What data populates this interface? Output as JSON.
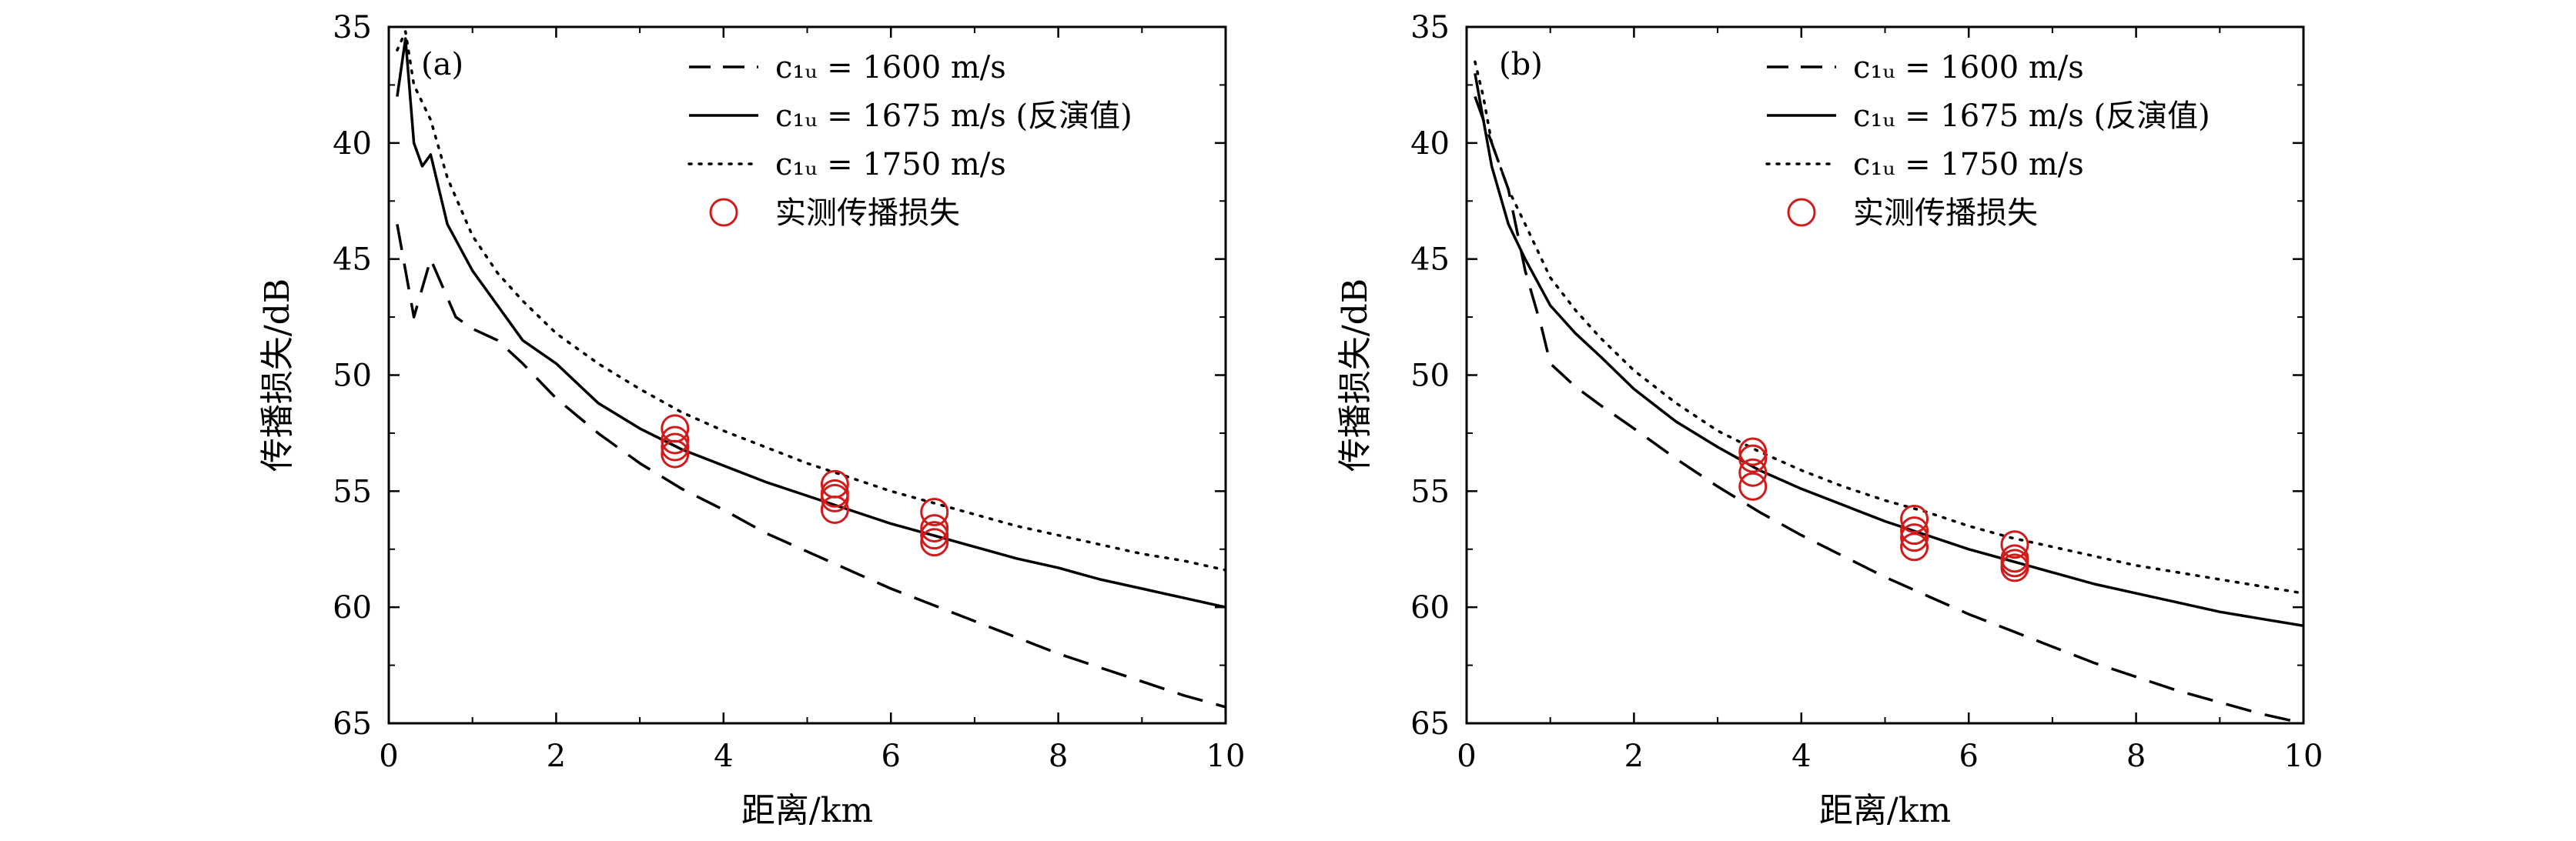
{
  "colors": {
    "curves": "#000000",
    "measured": "#d11a1a",
    "axis": "#000000"
  },
  "chart_data": [
    {
      "type": "line",
      "panel_label": "(a)",
      "xlabel": "距离/km",
      "ylabel": "传播损失/dB",
      "xlim": [
        0,
        10
      ],
      "ylim": [
        35,
        65
      ],
      "y_inverted": true,
      "xticks": [
        "0",
        "2",
        "4",
        "6",
        "8",
        "10"
      ],
      "yticks": [
        "35",
        "40",
        "45",
        "50",
        "55",
        "60",
        "65"
      ],
      "legend_position": "top-right",
      "legend": [
        {
          "label": "c₁ᵤ = 1600 m/s",
          "style": "dashed"
        },
        {
          "label": "c₁ᵤ = 1675 m/s (反演值)",
          "style": "solid"
        },
        {
          "label": "c₁ᵤ = 1750 m/s",
          "style": "dotted"
        },
        {
          "label": "实测传播损失",
          "style": "marker"
        }
      ],
      "series": [
        {
          "name": "c₁ᵤ = 1600 m/s",
          "style": "dashed",
          "x": [
            0.1,
            0.3,
            0.5,
            0.8,
            1.0,
            1.3,
            1.6,
            2.0,
            2.5,
            3.0,
            3.5,
            4.0,
            4.5,
            5.0,
            5.5,
            6.0,
            6.5,
            7.0,
            7.5,
            8.0,
            8.5,
            9.0,
            9.5,
            10.0
          ],
          "y": [
            43.5,
            47.5,
            45,
            47.5,
            48,
            48.5,
            49.5,
            51,
            52.5,
            53.8,
            54.9,
            55.8,
            56.8,
            57.6,
            58.4,
            59.2,
            59.9,
            60.6,
            61.3,
            62.0,
            62.6,
            63.2,
            63.8,
            64.3
          ]
        },
        {
          "name": "c₁ᵤ = 1675 m/s (反演值)",
          "style": "solid",
          "x": [
            0.1,
            0.2,
            0.3,
            0.4,
            0.5,
            0.7,
            1.0,
            1.3,
            1.6,
            2.0,
            2.5,
            3.0,
            3.5,
            4.0,
            4.5,
            5.0,
            5.5,
            6.0,
            6.5,
            7.0,
            7.5,
            8.0,
            8.5,
            9.0,
            9.5,
            10.0
          ],
          "y": [
            38,
            35.5,
            40,
            41,
            40.5,
            43.5,
            45.5,
            47,
            48.5,
            49.5,
            51.2,
            52.3,
            53.2,
            53.9,
            54.6,
            55.2,
            55.8,
            56.4,
            56.9,
            57.4,
            57.9,
            58.3,
            58.8,
            59.2,
            59.6,
            60.0
          ]
        },
        {
          "name": "c₁ᵤ = 1750 m/s",
          "style": "dotted",
          "x": [
            0.1,
            0.2,
            0.3,
            0.5,
            0.7,
            1.0,
            1.3,
            1.6,
            2.0,
            2.5,
            3.0,
            3.5,
            4.0,
            4.5,
            5.0,
            5.5,
            6.0,
            6.5,
            7.0,
            7.5,
            8.0,
            8.5,
            9.0,
            9.5,
            10.0
          ],
          "y": [
            36,
            35.2,
            37.5,
            39,
            41.5,
            44,
            45.6,
            46.8,
            48.2,
            49.5,
            50.6,
            51.6,
            52.4,
            53.1,
            53.8,
            54.4,
            55.0,
            55.5,
            56.0,
            56.5,
            56.9,
            57.3,
            57.7,
            58.0,
            58.4
          ]
        },
        {
          "name": "实测传播损失",
          "style": "marker",
          "x": [
            3.42,
            3.42,
            3.42,
            3.42,
            5.33,
            5.33,
            5.33,
            5.33,
            6.52,
            6.52,
            6.52,
            6.52
          ],
          "y": [
            52.3,
            52.8,
            53.1,
            53.4,
            54.7,
            55.1,
            55.3,
            55.8,
            55.9,
            56.6,
            56.9,
            57.2
          ]
        }
      ]
    },
    {
      "type": "line",
      "panel_label": "(b)",
      "xlabel": "距离/km",
      "ylabel": "传播损失/dB",
      "xlim": [
        0,
        10
      ],
      "ylim": [
        35,
        65
      ],
      "y_inverted": true,
      "xticks": [
        "0",
        "2",
        "4",
        "6",
        "8",
        "10"
      ],
      "yticks": [
        "35",
        "40",
        "45",
        "50",
        "55",
        "60",
        "65"
      ],
      "legend_position": "top-right",
      "legend": [
        {
          "label": "c₁ᵤ = 1600 m/s",
          "style": "dashed"
        },
        {
          "label": "c₁ᵤ = 1675 m/s (反演值)",
          "style": "solid"
        },
        {
          "label": "c₁ᵤ = 1750 m/s",
          "style": "dotted"
        },
        {
          "label": "实测传播损失",
          "style": "marker"
        }
      ],
      "series": [
        {
          "name": "c₁ᵤ = 1600 m/s",
          "style": "dashed",
          "x": [
            0.1,
            0.3,
            0.5,
            0.7,
            0.9,
            1.0,
            1.3,
            1.6,
            2.0,
            2.5,
            3.0,
            3.5,
            4.0,
            4.5,
            5.0,
            5.5,
            6.0,
            6.5,
            7.0,
            7.5,
            8.0,
            8.5,
            9.0,
            9.5,
            10.0
          ],
          "y": [
            38,
            40,
            42,
            45.5,
            48,
            49.5,
            50.5,
            51.3,
            52.3,
            53.6,
            54.8,
            55.9,
            56.9,
            57.8,
            58.7,
            59.5,
            60.3,
            61.0,
            61.7,
            62.4,
            63.0,
            63.6,
            64.1,
            64.6,
            65.0
          ]
        },
        {
          "name": "c₁ᵤ = 1675 m/s (反演值)",
          "style": "solid",
          "x": [
            0.1,
            0.2,
            0.3,
            0.5,
            0.7,
            1.0,
            1.3,
            1.6,
            2.0,
            2.5,
            3.0,
            3.5,
            4.0,
            4.5,
            5.0,
            5.5,
            6.0,
            6.5,
            7.0,
            7.5,
            8.0,
            8.5,
            9.0,
            9.5,
            10.0
          ],
          "y": [
            37,
            39,
            41,
            43.5,
            45,
            47,
            48.2,
            49.2,
            50.6,
            52.0,
            53.1,
            54.1,
            54.9,
            55.6,
            56.3,
            56.9,
            57.5,
            58.0,
            58.5,
            59.0,
            59.4,
            59.8,
            60.2,
            60.5,
            60.8
          ]
        },
        {
          "name": "c₁ᵤ = 1750 m/s",
          "style": "dotted",
          "x": [
            0.1,
            0.2,
            0.3,
            0.5,
            0.7,
            1.0,
            1.3,
            1.6,
            2.0,
            2.5,
            3.0,
            3.5,
            4.0,
            4.5,
            5.0,
            5.5,
            6.0,
            6.5,
            7.0,
            7.5,
            8.0,
            8.5,
            9.0,
            9.5,
            10.0
          ],
          "y": [
            36.5,
            38,
            40,
            42,
            43.5,
            45.8,
            47.2,
            48.4,
            49.8,
            51.2,
            52.4,
            53.3,
            54.1,
            54.8,
            55.4,
            55.9,
            56.5,
            57.0,
            57.4,
            57.8,
            58.2,
            58.5,
            58.8,
            59.1,
            59.4
          ]
        },
        {
          "name": "实测传播损失",
          "style": "marker",
          "x": [
            3.42,
            3.42,
            3.42,
            3.42,
            5.35,
            5.35,
            5.35,
            5.35,
            6.55,
            6.55,
            6.55,
            6.55
          ],
          "y": [
            53.3,
            53.6,
            54.2,
            54.8,
            56.2,
            56.7,
            57.0,
            57.4,
            57.3,
            57.9,
            58.1,
            58.3
          ]
        }
      ]
    }
  ]
}
